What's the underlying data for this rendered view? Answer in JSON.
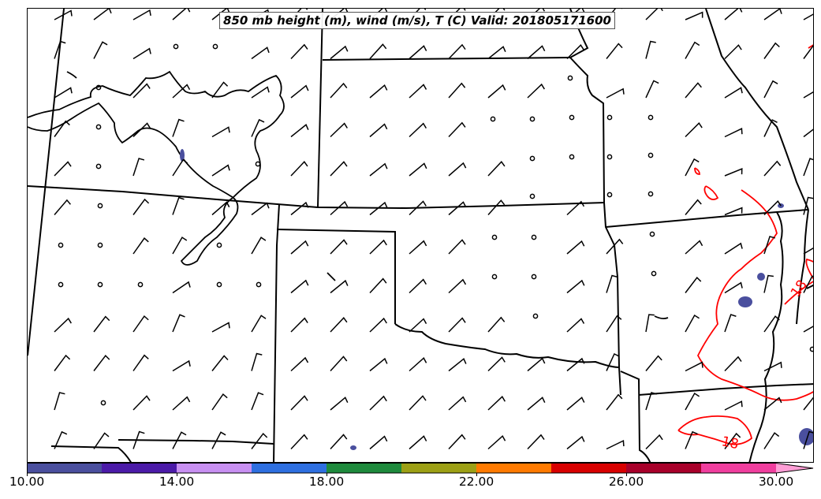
{
  "title": "850 mb height (m), wind (m/s), T (C) Valid: 201805171600",
  "colorbar": {
    "colors": [
      "#4a4f9e",
      "#4b1aa8",
      "#c890f2",
      "#2e6fe0",
      "#1e8a3c",
      "#9da015",
      "#ff7a00",
      "#d80000",
      "#a8002a",
      "#f03e9e",
      "#ff9ed6"
    ],
    "tick_labels": [
      "10.00",
      "14.00",
      "18.00",
      "22.00",
      "26.00",
      "30.00"
    ],
    "extend": "max"
  },
  "contour_labels": [
    {
      "text": "18",
      "color": "#ff0000"
    },
    {
      "text": "18",
      "color": "#ff0000"
    }
  ],
  "colors": {
    "boundary": "#000000",
    "isotherm": "#ff0000",
    "shade": "#4a4f9e"
  }
}
